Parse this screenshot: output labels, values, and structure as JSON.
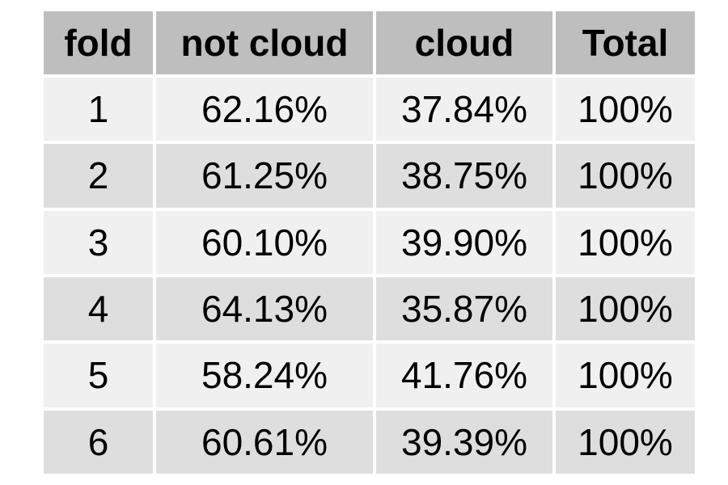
{
  "chart_data": {
    "type": "table",
    "columns": [
      "fold",
      "not cloud",
      "cloud",
      "Total"
    ],
    "rows": [
      [
        "1",
        "62.16%",
        "37.84%",
        "100%"
      ],
      [
        "2",
        "61.25%",
        "38.75%",
        "100%"
      ],
      [
        "3",
        "60.10%",
        "39.90%",
        "100%"
      ],
      [
        "4",
        "64.13%",
        "35.87%",
        "100%"
      ],
      [
        "5",
        "58.24%",
        "41.76%",
        "100%"
      ],
      [
        "6",
        "60.61%",
        "39.39%",
        "100%"
      ]
    ]
  },
  "colors": {
    "header_bg": "#bebebe",
    "row_light": "#f0f0f0",
    "row_dark": "#dedede",
    "text": "#000000"
  }
}
